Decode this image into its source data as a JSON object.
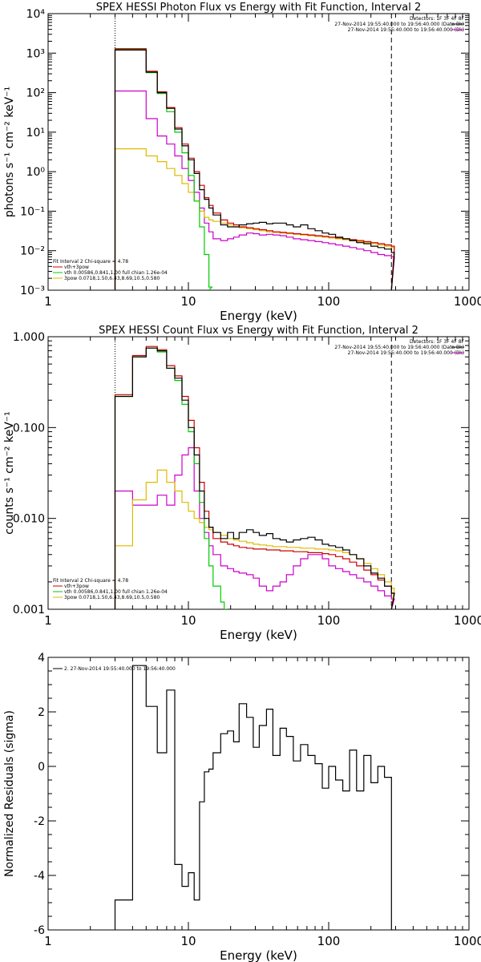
{
  "colors": {
    "data": "#000000",
    "total": "#cc0000",
    "vth": "#00cc00",
    "spec3pow": "#ddbb00",
    "background": "#cc00cc",
    "axis": "#000000"
  },
  "chart_data": [
    {
      "type": "line",
      "title": "SPEX HESSI Photon Flux vs Energy with Fit Function, Interval 2",
      "xlabel": "Energy (keV)",
      "ylabel": "photons s⁻¹ cm⁻² keV⁻¹",
      "xlog": true,
      "ylog": true,
      "xlim": [
        1,
        1000
      ],
      "ylim": [
        0.001,
        10000
      ],
      "xticks": [
        {
          "v": 1,
          "label": "1"
        },
        {
          "v": 10,
          "label": "10"
        },
        {
          "v": 100,
          "label": "100"
        },
        {
          "v": 1000,
          "label": "1000"
        }
      ],
      "yticks": [
        {
          "v": 0.001,
          "label": "10⁻³"
        },
        {
          "v": 0.01,
          "label": "10⁻²"
        },
        {
          "v": 0.1,
          "label": "10⁻¹"
        },
        {
          "v": 1,
          "label": "10⁰"
        },
        {
          "v": 10,
          "label": "10¹"
        },
        {
          "v": 100,
          "label": "10²"
        },
        {
          "v": 1000,
          "label": "10³"
        },
        {
          "v": 10000,
          "label": "10⁴"
        }
      ],
      "vlines": [
        {
          "x": 3,
          "style": "dotted"
        },
        {
          "x": 280,
          "style": "dashed"
        }
      ],
      "info": [
        "Detectors: 1F 3F 4F 8F",
        "27-Nov-2014 19:55:40.000 to 19:56:40.000 (Data-Bk)",
        "27-Nov-2014 19:55:40.000 to 19:56:40.000 (Bk)"
      ],
      "legend": {
        "title": "Fit Interval 2  Chi-square = 4.78",
        "entries": [
          "vth+3pow",
          "vth 0.00586,0.841,1.00  full chian 1.26e-04",
          "3pow 0.0718,1.50,6.43,8.69,10.5,0.580"
        ]
      },
      "series": [
        {
          "name": "data",
          "color": "#000000",
          "x": [
            3,
            4,
            5,
            6,
            7,
            8,
            9,
            10,
            11,
            12,
            13,
            14,
            15,
            17,
            19,
            21,
            23,
            26,
            29,
            32,
            36,
            40,
            45,
            50,
            56,
            63,
            71,
            80,
            90,
            100,
            112,
            126,
            141,
            158,
            178,
            200,
            224,
            250,
            280
          ],
          "y": [
            1200,
            1200,
            330,
            100,
            40,
            12,
            4.5,
            2,
            0.9,
            0.35,
            0.2,
            0.12,
            0.08,
            0.045,
            0.04,
            0.04,
            0.045,
            0.048,
            0.05,
            0.052,
            0.048,
            0.05,
            0.05,
            0.045,
            0.04,
            0.045,
            0.036,
            0.032,
            0.028,
            0.026,
            0.022,
            0.02,
            0.018,
            0.016,
            0.015,
            0.013,
            0.012,
            0.011,
            0.009
          ]
        },
        {
          "name": "vth+3pow",
          "color": "#cc0000",
          "x": [
            3,
            4,
            5,
            6,
            7,
            8,
            9,
            10,
            11,
            12,
            13,
            14,
            15,
            17,
            19,
            21,
            23,
            26,
            29,
            32,
            36,
            40,
            45,
            50,
            56,
            63,
            71,
            80,
            90,
            100,
            112,
            126,
            141,
            158,
            178,
            200,
            224,
            250,
            280
          ],
          "y": [
            1300,
            1300,
            350,
            105,
            42,
            13,
            5,
            2.2,
            1.0,
            0.45,
            0.22,
            0.14,
            0.09,
            0.06,
            0.05,
            0.045,
            0.04,
            0.038,
            0.036,
            0.034,
            0.032,
            0.03,
            0.029,
            0.028,
            0.027,
            0.026,
            0.025,
            0.024,
            0.023,
            0.022,
            0.021,
            0.02,
            0.019,
            0.018,
            0.017,
            0.016,
            0.015,
            0.014,
            0.013
          ]
        },
        {
          "name": "vth",
          "color": "#00cc00",
          "x": [
            3,
            4,
            5,
            6,
            7,
            8,
            9,
            10,
            11,
            12,
            13,
            14
          ],
          "y": [
            1250,
            1250,
            320,
            95,
            33,
            10,
            3.0,
            0.8,
            0.18,
            0.04,
            0.008,
            0.0012
          ]
        },
        {
          "name": "3pow",
          "color": "#ddbb00",
          "x": [
            3,
            4,
            5,
            6,
            7,
            8,
            9,
            10,
            11,
            12,
            13,
            14,
            15,
            17,
            19,
            21,
            23,
            26,
            29,
            32,
            36,
            40,
            45,
            50,
            56,
            63,
            71,
            80,
            90,
            100,
            112,
            126,
            141,
            158,
            178,
            200,
            224,
            250,
            280
          ],
          "y": [
            3.8,
            3.8,
            2.5,
            1.8,
            1.2,
            0.8,
            0.5,
            0.3,
            0.18,
            0.1,
            0.07,
            0.06,
            0.055,
            0.05,
            0.045,
            0.04,
            0.038,
            0.036,
            0.034,
            0.032,
            0.03,
            0.029,
            0.028,
            0.027,
            0.026,
            0.025,
            0.024,
            0.023,
            0.022,
            0.021,
            0.02,
            0.019,
            0.018,
            0.017,
            0.016,
            0.015,
            0.014,
            0.013,
            0.012
          ]
        },
        {
          "name": "background",
          "color": "#cc00cc",
          "x": [
            3,
            4,
            5,
            6,
            7,
            8,
            9,
            10,
            11,
            12,
            13,
            14,
            15,
            17,
            19,
            21,
            23,
            26,
            29,
            32,
            36,
            40,
            45,
            50,
            56,
            63,
            71,
            80,
            90,
            100,
            112,
            126,
            141,
            158,
            178,
            200,
            224,
            250,
            280
          ],
          "y": [
            110,
            110,
            22,
            8,
            5,
            2.5,
            1.2,
            0.6,
            0.3,
            0.12,
            0.05,
            0.03,
            0.02,
            0.018,
            0.02,
            0.022,
            0.025,
            0.028,
            0.027,
            0.025,
            0.026,
            0.025,
            0.024,
            0.022,
            0.02,
            0.019,
            0.018,
            0.017,
            0.016,
            0.015,
            0.014,
            0.013,
            0.012,
            0.011,
            0.01,
            0.009,
            0.008,
            0.0075,
            0.007
          ]
        }
      ]
    },
    {
      "type": "line",
      "title": "SPEX HESSI Count Flux vs Energy with Fit Function, Interval 2",
      "xlabel": "Energy (keV)",
      "ylabel": "counts s⁻¹ cm⁻² keV⁻¹",
      "xlog": true,
      "ylog": true,
      "xlim": [
        1,
        1000
      ],
      "ylim": [
        0.001,
        1
      ],
      "xticks": [
        {
          "v": 1,
          "label": "1"
        },
        {
          "v": 10,
          "label": "10"
        },
        {
          "v": 100,
          "label": "100"
        },
        {
          "v": 1000,
          "label": "1000"
        }
      ],
      "yticks": [
        {
          "v": 0.001,
          "label": "0.001"
        },
        {
          "v": 0.01,
          "label": "0.010"
        },
        {
          "v": 0.1,
          "label": "0.100"
        },
        {
          "v": 1,
          "label": "1.000"
        }
      ],
      "vlines": [
        {
          "x": 3,
          "style": "dotted"
        },
        {
          "x": 280,
          "style": "dashed"
        }
      ],
      "info": [
        "Detectors: 1F 3F 4F 8F",
        "27-Nov-2014 19:55:40.000 to 19:56:40.000 (Data-Bk)",
        "27-Nov-2014 19:55:40.000 to 19:56:40.000 (Bk)"
      ],
      "legend": {
        "title": "Fit Interval 2  Chi-square = 4.78",
        "entries": [
          "vth+3pow",
          "vth 0.00586,0.841,1.00  full chian 1.26e-04",
          "3pow 0.0718,1.50,6.43,8.69,10.5,0.580"
        ]
      },
      "series": [
        {
          "name": "data",
          "color": "#000000",
          "x": [
            3,
            4,
            5,
            6,
            7,
            8,
            9,
            10,
            11,
            12,
            13,
            14,
            15,
            17,
            19,
            21,
            23,
            26,
            29,
            32,
            36,
            40,
            45,
            50,
            56,
            63,
            71,
            80,
            90,
            100,
            112,
            126,
            141,
            158,
            178,
            200,
            224,
            250,
            280
          ],
          "y": [
            0.22,
            0.6,
            0.75,
            0.7,
            0.45,
            0.35,
            0.2,
            0.1,
            0.05,
            0.02,
            0.01,
            0.008,
            0.007,
            0.006,
            0.007,
            0.006,
            0.007,
            0.0075,
            0.007,
            0.0065,
            0.0068,
            0.006,
            0.0058,
            0.0055,
            0.0058,
            0.006,
            0.0062,
            0.0058,
            0.0052,
            0.005,
            0.0048,
            0.0045,
            0.004,
            0.0036,
            0.003,
            0.0025,
            0.0022,
            0.0018,
            0.0015
          ]
        },
        {
          "name": "vth+3pow",
          "color": "#cc0000",
          "x": [
            3,
            4,
            5,
            6,
            7,
            8,
            9,
            10,
            11,
            12,
            13,
            14,
            15,
            17,
            19,
            21,
            23,
            26,
            29,
            32,
            36,
            40,
            45,
            50,
            56,
            63,
            71,
            80,
            90,
            100,
            112,
            126,
            141,
            158,
            178,
            200,
            224,
            250,
            280
          ],
          "y": [
            0.23,
            0.62,
            0.78,
            0.72,
            0.48,
            0.37,
            0.22,
            0.12,
            0.06,
            0.025,
            0.012,
            0.008,
            0.006,
            0.0055,
            0.0052,
            0.005,
            0.0048,
            0.0047,
            0.0046,
            0.0046,
            0.0045,
            0.0045,
            0.0044,
            0.0044,
            0.0043,
            0.0043,
            0.0042,
            0.0042,
            0.0041,
            0.004,
            0.0038,
            0.0036,
            0.0033,
            0.003,
            0.0027,
            0.0024,
            0.0021,
            0.0018,
            0.0015
          ]
        },
        {
          "name": "vth",
          "color": "#00cc00",
          "x": [
            3,
            4,
            5,
            6,
            7,
            8,
            9,
            10,
            11,
            12,
            13,
            14,
            15,
            17,
            18
          ],
          "y": [
            0.22,
            0.6,
            0.75,
            0.68,
            0.45,
            0.33,
            0.18,
            0.09,
            0.04,
            0.015,
            0.006,
            0.003,
            0.0018,
            0.0012,
            0.001
          ]
        },
        {
          "name": "3pow",
          "color": "#ddbb00",
          "x": [
            3,
            4,
            5,
            6,
            7,
            8,
            9,
            10,
            11,
            12,
            13,
            14,
            15,
            17,
            19,
            21,
            23,
            26,
            29,
            32,
            36,
            40,
            45,
            50,
            56,
            63,
            71,
            80,
            90,
            100,
            112,
            126,
            141,
            158,
            178,
            200,
            224,
            250,
            280
          ],
          "y": [
            0.005,
            0.016,
            0.025,
            0.034,
            0.025,
            0.02,
            0.015,
            0.012,
            0.01,
            0.009,
            0.008,
            0.0075,
            0.007,
            0.0065,
            0.006,
            0.0058,
            0.0056,
            0.0054,
            0.0052,
            0.0051,
            0.005,
            0.0049,
            0.0049,
            0.0048,
            0.0048,
            0.0047,
            0.0047,
            0.0046,
            0.0046,
            0.0045,
            0.0044,
            0.0042,
            0.004,
            0.0036,
            0.0032,
            0.0028,
            0.0024,
            0.002,
            0.0017
          ]
        },
        {
          "name": "background",
          "color": "#cc00cc",
          "x": [
            3,
            4,
            5,
            6,
            7,
            8,
            9,
            10,
            11,
            12,
            13,
            14,
            15,
            17,
            19,
            21,
            23,
            26,
            29,
            32,
            36,
            40,
            45,
            50,
            56,
            63,
            71,
            80,
            90,
            100,
            112,
            126,
            141,
            158,
            178,
            200,
            224,
            250,
            280
          ],
          "y": [
            0.02,
            0.014,
            0.014,
            0.018,
            0.014,
            0.03,
            0.05,
            0.06,
            0.02,
            0.01,
            0.007,
            0.005,
            0.004,
            0.003,
            0.0028,
            0.0026,
            0.0025,
            0.0024,
            0.0022,
            0.0018,
            0.0016,
            0.0018,
            0.002,
            0.0024,
            0.003,
            0.0036,
            0.004,
            0.004,
            0.0036,
            0.003,
            0.0028,
            0.0026,
            0.0024,
            0.0022,
            0.002,
            0.0018,
            0.0016,
            0.0014,
            0.0013
          ]
        }
      ]
    },
    {
      "type": "line",
      "title": "",
      "xlabel": "Energy (keV)",
      "ylabel": "Normalized Residuals (sigma)",
      "xlog": true,
      "ylog": false,
      "xlim": [
        1,
        1000
      ],
      "ylim": [
        -6,
        4
      ],
      "xticks": [
        {
          "v": 1,
          "label": "1"
        },
        {
          "v": 10,
          "label": "10"
        },
        {
          "v": 100,
          "label": "100"
        },
        {
          "v": 1000,
          "label": "1000"
        }
      ],
      "yticks": [
        {
          "v": -6,
          "label": "-6"
        },
        {
          "v": -4,
          "label": "-4"
        },
        {
          "v": -2,
          "label": "-2"
        },
        {
          "v": 0,
          "label": "0"
        },
        {
          "v": 2,
          "label": "2"
        },
        {
          "v": 4,
          "label": "4"
        }
      ],
      "vlines": [],
      "info": [],
      "legend": {
        "title": "",
        "entries": [
          "2. 27-Nov-2014 19:55:40.000 to 19:56:40.000"
        ]
      },
      "series": [
        {
          "name": "residuals",
          "color": "#000000",
          "x": [
            3,
            4,
            5,
            6,
            7,
            8,
            9,
            10,
            11,
            12,
            13,
            14,
            15,
            17,
            19,
            21,
            23,
            26,
            29,
            32,
            36,
            40,
            45,
            50,
            56,
            63,
            71,
            80,
            90,
            100,
            112,
            126,
            141,
            158,
            178,
            200,
            224,
            250,
            280
          ],
          "y": [
            -4.9,
            3.7,
            2.2,
            0.5,
            2.8,
            -3.6,
            -4.4,
            -3.9,
            -4.9,
            -1.3,
            -0.2,
            -0.1,
            0.5,
            1.2,
            1.3,
            0.9,
            2.3,
            1.8,
            0.7,
            1.5,
            2.1,
            0.4,
            1.4,
            1.1,
            0.2,
            0.8,
            0.4,
            0.1,
            -0.8,
            0.0,
            -0.5,
            -0.9,
            0.6,
            -0.9,
            0.4,
            -0.6,
            0.0,
            -0.4,
            -6.0
          ]
        }
      ]
    }
  ]
}
